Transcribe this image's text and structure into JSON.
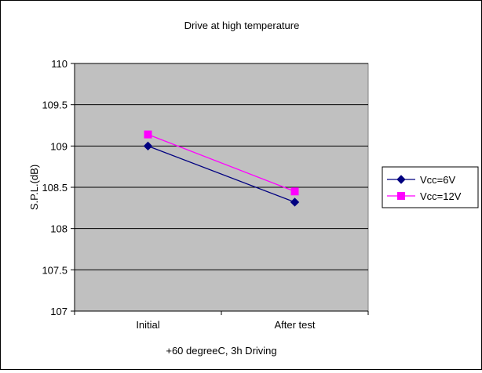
{
  "chart_data": {
    "type": "line",
    "title": "Drive at high temperature",
    "xlabel": "+60 degreeC, 3h Driving",
    "ylabel": "S.P.L.(dB)",
    "categories": [
      "Initial",
      "After test"
    ],
    "ylim": [
      107,
      110
    ],
    "yticks": [
      "107",
      "107.5",
      "108",
      "108.5",
      "109",
      "109.5",
      "110"
    ],
    "ytick_values": [
      107,
      107.5,
      108,
      108.5,
      109,
      109.5,
      110
    ],
    "grid": true,
    "legend": "right",
    "series": [
      {
        "name": "Vcc=6V",
        "values": [
          109.0,
          108.32
        ],
        "color": "#000080",
        "marker": "diamond"
      },
      {
        "name": "Vcc=12V",
        "values": [
          109.14,
          108.45
        ],
        "color": "#ff00ff",
        "marker": "square"
      }
    ],
    "plot_background": "#c0c0c0"
  }
}
